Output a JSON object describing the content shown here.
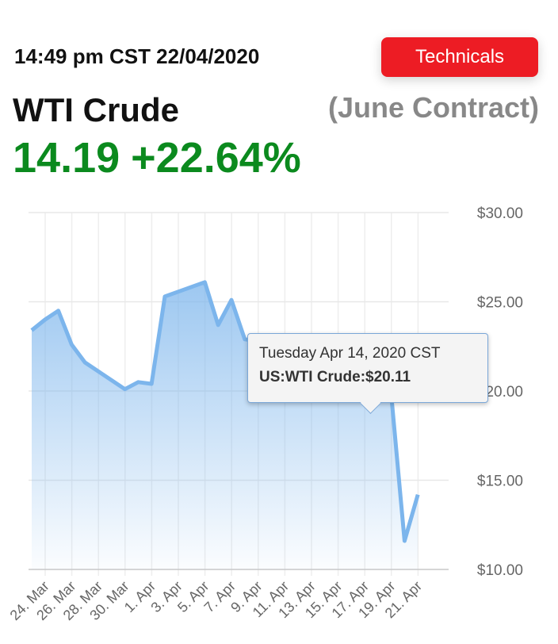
{
  "header": {
    "timestamp": "14:49 pm CST 22/04/2020",
    "technicals_label": "Technicals",
    "instrument": "WTI Crude",
    "contract": "(June Contract)",
    "price": "14.19",
    "change": "+22.64%"
  },
  "colors": {
    "accent_red": "#ed1c24",
    "price_green": "#0b8a1e",
    "line_blue": "#7cb5ec"
  },
  "tooltip": {
    "date": "Tuesday Apr 14, 2020 CST",
    "label": "US:WTI Crude:$20.11"
  },
  "chart_data": {
    "type": "area",
    "title": "",
    "xlabel": "",
    "ylabel": "",
    "ylim": [
      10,
      30
    ],
    "yticks": [
      "$10.00",
      "$15.00",
      "$20.00",
      "$25.00",
      "$30.00"
    ],
    "xticks": [
      "24. Mar",
      "26. Mar",
      "28. Mar",
      "30. Mar",
      "1. Apr",
      "3. Apr",
      "5. Apr",
      "7. Apr",
      "9. Apr",
      "11. Apr",
      "13. Apr",
      "15. Apr",
      "17. Apr",
      "19. Apr",
      "21. Apr"
    ],
    "grid": true,
    "series": [
      {
        "x": [
          "2020-03-24",
          "2020-03-25",
          "2020-03-26",
          "2020-03-27",
          "2020-03-28",
          "2020-03-31",
          "2020-04-01",
          "2020-04-02",
          "2020-04-03",
          "2020-04-06",
          "2020-04-07",
          "2020-04-08",
          "2020-04-09",
          "2020-04-10",
          "2020-04-13",
          "2020-04-14",
          "2020-04-15",
          "2020-04-16",
          "2020-04-17",
          "2020-04-20",
          "2020-04-21",
          "2020-04-22"
        ],
        "y": [
          23.4,
          24.0,
          24.5,
          22.6,
          21.6,
          20.1,
          20.5,
          20.4,
          25.3,
          26.1,
          23.7,
          25.1,
          22.9,
          22.8,
          22.5,
          20.11,
          20.0,
          19.9,
          19.8,
          19.8,
          11.6,
          14.19
        ]
      }
    ]
  }
}
